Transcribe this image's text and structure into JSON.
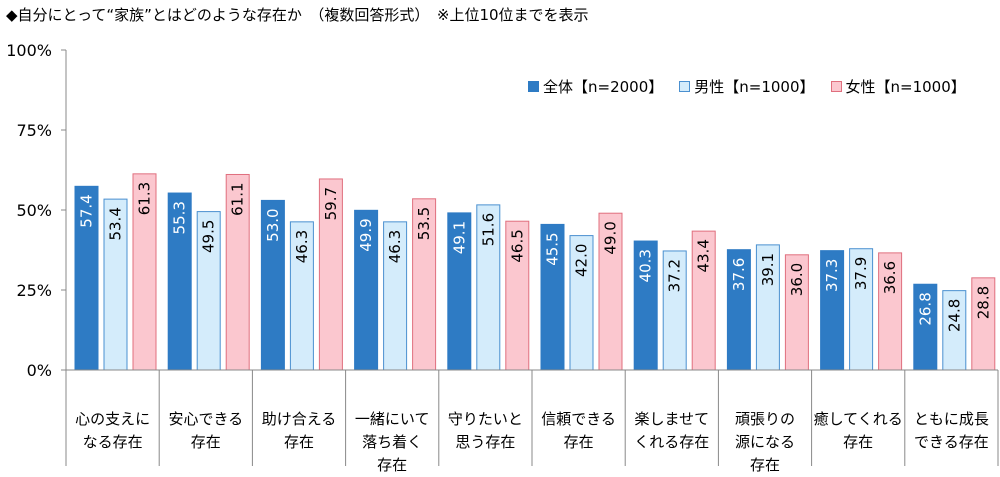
{
  "chart_data": {
    "type": "bar",
    "title": "◆自分にとって“家族”とはどのような存在か　（複数回答形式）　※上位10位までを表示",
    "categories": [
      [
        "心の支えに",
        "なる存在"
      ],
      [
        "安心できる",
        "存在"
      ],
      [
        "助け合える",
        "存在"
      ],
      [
        "一緒にいて",
        "落ち着く",
        "存在"
      ],
      [
        "守りたいと",
        "思う存在"
      ],
      [
        "信頼できる",
        "存在"
      ],
      [
        "楽しませて",
        "くれる存在"
      ],
      [
        "頑張りの",
        "源になる",
        "存在"
      ],
      [
        "癒してくれる",
        "存在"
      ],
      [
        "ともに成長",
        "できる存在"
      ]
    ],
    "series": [
      {
        "name": "全体【n=2000】",
        "color": "#2e7bc4",
        "stroke": "#2e7bc4",
        "label_color": "#ffffff",
        "values": [
          57.4,
          55.3,
          53.0,
          49.9,
          49.1,
          45.5,
          40.3,
          37.6,
          37.3,
          26.8
        ]
      },
      {
        "name": "男性【n=1000】",
        "color": "#d4ecfb",
        "stroke": "#4a90d0",
        "label_color": "#000000",
        "values": [
          53.4,
          49.5,
          46.3,
          46.3,
          51.6,
          42.0,
          37.2,
          39.1,
          37.9,
          24.8
        ]
      },
      {
        "name": "女性【n=1000】",
        "color": "#fbc7cf",
        "stroke": "#e06f7e",
        "label_color": "#000000",
        "values": [
          61.3,
          61.1,
          59.7,
          53.5,
          46.5,
          49.0,
          43.4,
          36.0,
          36.6,
          28.8
        ]
      }
    ],
    "yticks": [
      "0%",
      "25%",
      "50%",
      "75%",
      "100%"
    ],
    "ylim": [
      0,
      100
    ],
    "grid": false,
    "legend_position": "top-right"
  }
}
